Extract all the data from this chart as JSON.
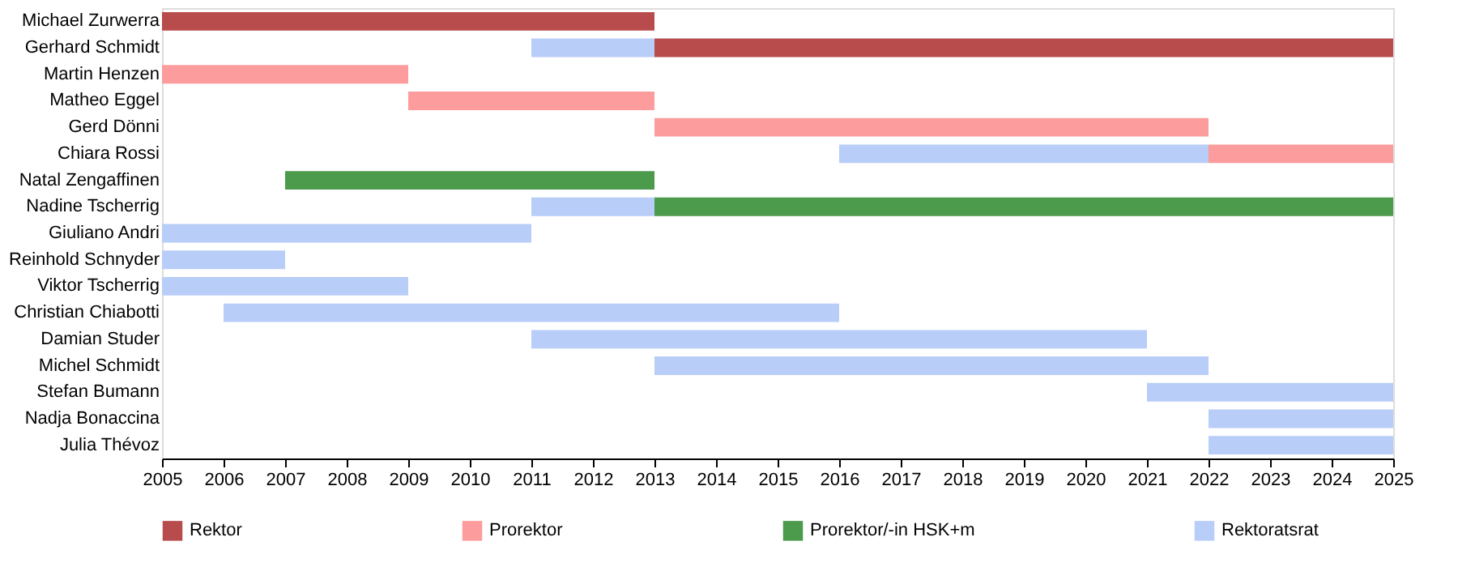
{
  "chart_data": {
    "type": "bar",
    "orientation": "horizontal",
    "categories": [
      "Michael Zurwerra",
      "Gerhard Schmidt",
      "Martin Henzen",
      "Matheo Eggel",
      "Gerd Dönni",
      "Chiara Rossi",
      "Natal Zengaffinen",
      "Nadine Tscherrig",
      "Giuliano Andri",
      "Reinhold Schnyder",
      "Viktor Tscherrig",
      "Christian Chiabotti",
      "Damian Studer",
      "Michel Schmidt",
      "Stefan Bumann",
      "Nadja Bonaccina",
      "Julia Thévoz"
    ],
    "series": [
      {
        "name": "Rektor",
        "color": "#b84c4c",
        "values": [
          8,
          12,
          null,
          null,
          null,
          null,
          null,
          null,
          null,
          null,
          null,
          null,
          null,
          null,
          null,
          null,
          null
        ],
        "base": [
          2005,
          2013,
          null,
          null,
          null,
          null,
          null,
          null,
          null,
          null,
          null,
          null,
          null,
          null,
          null,
          null,
          null
        ]
      },
      {
        "name": "Prorektor",
        "color": "#fc9c9c",
        "values": [
          null,
          null,
          4,
          4,
          9,
          3,
          null,
          null,
          null,
          null,
          null,
          null,
          null,
          null,
          null,
          null,
          null
        ],
        "base": [
          null,
          null,
          2005,
          2009,
          2013,
          2022,
          null,
          null,
          null,
          null,
          null,
          null,
          null,
          null,
          null,
          null,
          null
        ]
      },
      {
        "name": "Prorektor/-in HSK+m",
        "color": "#4c9a4c",
        "values": [
          null,
          null,
          null,
          null,
          null,
          null,
          6,
          12,
          null,
          null,
          null,
          null,
          null,
          null,
          null,
          null,
          null
        ],
        "base": [
          null,
          null,
          null,
          null,
          null,
          null,
          2007,
          2013,
          null,
          null,
          null,
          null,
          null,
          null,
          null,
          null,
          null
        ]
      },
      {
        "name": "Rektoratsrat",
        "color": "#b8cdf8",
        "values": [
          null,
          2,
          null,
          null,
          null,
          6,
          null,
          2,
          6,
          2,
          4,
          10,
          10,
          9,
          4,
          3,
          3
        ],
        "base": [
          null,
          2011,
          null,
          null,
          null,
          2016,
          null,
          2011,
          2005,
          2005,
          2005,
          2006,
          2011,
          2013,
          2021,
          2022,
          2022
        ]
      }
    ],
    "xlim": [
      2005,
      2025
    ],
    "xticks": [
      2005,
      2006,
      2007,
      2008,
      2009,
      2010,
      2011,
      2012,
      2013,
      2014,
      2015,
      2016,
      2017,
      2018,
      2019,
      2020,
      2021,
      2022,
      2023,
      2024,
      2025
    ],
    "grid": false,
    "legend": "bottom"
  }
}
